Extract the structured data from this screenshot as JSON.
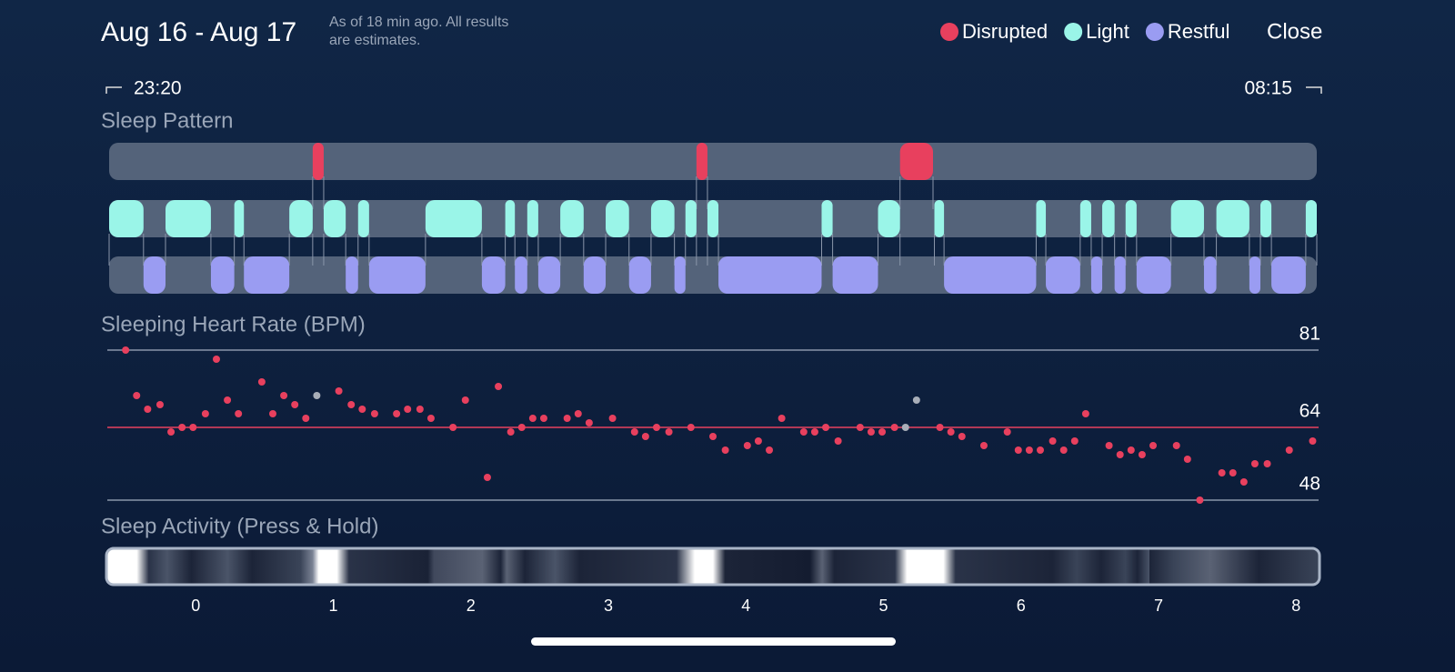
{
  "header": {
    "title": "Aug 16 - Aug 17",
    "note": [
      "As of 18 min ago. All results",
      "are estimates."
    ],
    "close": "Close"
  },
  "legend": [
    {
      "label": "Disrupted",
      "color": "#e8405e"
    },
    {
      "label": "Light",
      "color": "#9af5e8"
    },
    {
      "label": "Restful",
      "color": "#9a9cf2"
    }
  ],
  "timeline": {
    "start": "23:20",
    "end": "08:15",
    "xlim": [
      -0.63,
      8.15
    ],
    "xticks": [
      0,
      1,
      2,
      3,
      4,
      5,
      6,
      7,
      8
    ]
  },
  "sleep_pattern": {
    "title": "Sleep Pattern",
    "rows": [
      {
        "segments": [
          [
            0.85,
            0.93
          ],
          [
            3.64,
            3.72
          ],
          [
            5.12,
            5.36
          ]
        ]
      },
      {
        "segments": [
          [
            -0.63,
            -0.38
          ],
          [
            -0.22,
            0.11
          ],
          [
            0.28,
            0.35
          ],
          [
            0.68,
            0.85
          ],
          [
            0.93,
            1.09
          ],
          [
            1.18,
            1.26
          ],
          [
            1.67,
            2.08
          ],
          [
            2.25,
            2.32
          ],
          [
            2.41,
            2.49
          ],
          [
            2.65,
            2.82
          ],
          [
            2.98,
            3.15
          ],
          [
            3.31,
            3.48
          ],
          [
            3.56,
            3.64
          ],
          [
            3.72,
            3.8
          ],
          [
            4.55,
            4.63
          ],
          [
            4.96,
            5.12
          ],
          [
            5.37,
            5.44
          ],
          [
            6.11,
            6.18
          ],
          [
            6.43,
            6.51
          ],
          [
            6.59,
            6.68
          ],
          [
            6.76,
            6.84
          ],
          [
            7.09,
            7.33
          ],
          [
            7.42,
            7.66
          ],
          [
            7.74,
            7.82
          ],
          [
            8.07,
            8.15
          ]
        ]
      },
      {
        "segments": [
          [
            -0.38,
            -0.22
          ],
          [
            0.11,
            0.28
          ],
          [
            0.35,
            0.68
          ],
          [
            1.09,
            1.18
          ],
          [
            1.26,
            1.67
          ],
          [
            2.08,
            2.25
          ],
          [
            2.32,
            2.41
          ],
          [
            2.49,
            2.65
          ],
          [
            2.82,
            2.98
          ],
          [
            3.15,
            3.31
          ],
          [
            3.48,
            3.56
          ],
          [
            3.8,
            4.55
          ],
          [
            4.63,
            4.96
          ],
          [
            5.44,
            6.11
          ],
          [
            6.18,
            6.43
          ],
          [
            6.51,
            6.59
          ],
          [
            6.68,
            6.76
          ],
          [
            6.84,
            7.09
          ],
          [
            7.33,
            7.42
          ],
          [
            7.66,
            7.74
          ],
          [
            7.82,
            8.07
          ]
        ]
      }
    ]
  },
  "heart_rate": {
    "title": "Sleeping Heart Rate (BPM)",
    "ylim": [
      48,
      81
    ],
    "yticks": [
      48,
      81
    ],
    "average": 64,
    "average_color": "#e8405e",
    "series": [
      {
        "color": "#e8405e",
        "x": [
          -0.51,
          -0.43,
          -0.35,
          -0.26,
          -0.18,
          -0.1,
          -0.02,
          0.07,
          0.15,
          0.23,
          0.31,
          0.48,
          0.56,
          0.64,
          0.72,
          0.8,
          1.04,
          1.13,
          1.21,
          1.3,
          1.46,
          1.54,
          1.63,
          1.71,
          1.87,
          1.96,
          2.12,
          2.2,
          2.29,
          2.37,
          2.45,
          2.53,
          2.7,
          2.78,
          2.86,
          3.03,
          3.19,
          3.27,
          3.35,
          3.44,
          3.6,
          3.76,
          3.85,
          4.01,
          4.09,
          4.17,
          4.26,
          4.42,
          4.5,
          4.58,
          4.67,
          4.83,
          4.91,
          4.99,
          5.08,
          5.41,
          5.49,
          5.57,
          5.73,
          5.9,
          5.98,
          6.06,
          6.14,
          6.23,
          6.31,
          6.39,
          6.47,
          6.64,
          6.72,
          6.8,
          6.88,
          6.96,
          7.13,
          7.21,
          7.3,
          7.46,
          7.54,
          7.62,
          7.7,
          7.79,
          7.95,
          8.12
        ],
        "values": [
          81,
          71,
          68,
          69,
          63,
          64,
          64,
          67,
          79,
          70,
          67,
          74,
          67,
          71,
          69,
          66,
          72,
          69,
          68,
          67,
          67,
          68,
          68,
          66,
          64,
          70,
          53,
          73,
          63,
          64,
          66,
          66,
          66,
          67,
          65,
          66,
          63,
          62,
          64,
          63,
          64,
          62,
          59,
          60,
          61,
          59,
          66,
          63,
          63,
          64,
          61,
          64,
          63,
          63,
          64,
          64,
          63,
          62,
          60,
          63,
          59,
          59,
          59,
          61,
          59,
          61,
          67,
          60,
          58,
          59,
          58,
          60,
          60,
          57,
          48,
          54,
          54,
          52,
          56,
          56,
          59,
          61
        ]
      },
      {
        "color": "#a8aeb8",
        "x": [
          0.88,
          5.16,
          5.24
        ],
        "values": [
          71,
          64,
          70
        ]
      }
    ]
  },
  "sleep_activity": {
    "title": "Sleep Activity (Press & Hold)"
  }
}
